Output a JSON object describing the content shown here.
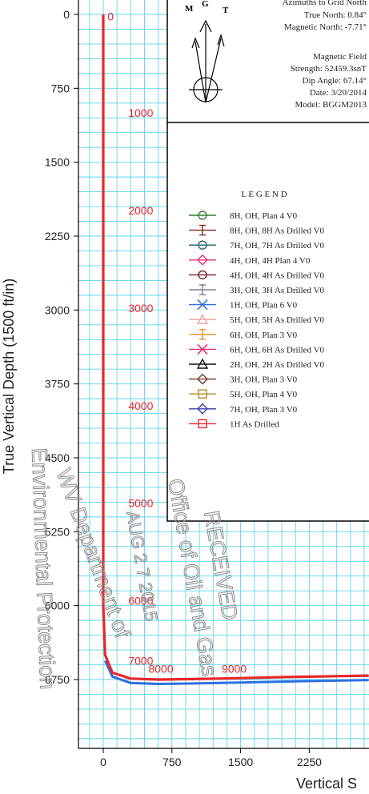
{
  "chart_data": {
    "type": "line",
    "title": "",
    "ylabel": "True Vertical Depth (1500 ft/in)",
    "xlabel": "Vertical S",
    "x_ticks": [
      0,
      750,
      1500,
      2250
    ],
    "y_ticks": [
      0,
      750,
      1500,
      2250,
      3000,
      3750,
      4500,
      5250,
      6000,
      6750
    ],
    "xlim": [
      -250,
      2850
    ],
    "ylim": [
      0,
      7450
    ],
    "grid": true,
    "md_labels": [
      {
        "text": "0",
        "x": 80,
        "y": 20
      },
      {
        "text": "1000",
        "x": 410,
        "y": 1000
      },
      {
        "text": "2000",
        "x": 410,
        "y": 1990
      },
      {
        "text": "3000",
        "x": 410,
        "y": 2980
      },
      {
        "text": "4000",
        "x": 410,
        "y": 3970
      },
      {
        "text": "5000",
        "x": 410,
        "y": 4960
      },
      {
        "text": "6000",
        "x": 410,
        "y": 5950
      },
      {
        "text": "7000",
        "x": 410,
        "y": 6560
      },
      {
        "text": "8000",
        "x": 630,
        "y": 6640
      },
      {
        "text": "9000",
        "x": 1430,
        "y": 6640
      }
    ],
    "series": [
      {
        "name": "1H As Drilled",
        "color": "#e8262a",
        "x": [
          0,
          0,
          0,
          0,
          0,
          0,
          20,
          100,
          300,
          600,
          1000,
          1500,
          2000,
          2600,
          2900
        ],
        "y": [
          0,
          1000,
          2000,
          3000,
          4000,
          6000,
          6500,
          6680,
          6740,
          6750,
          6745,
          6735,
          6725,
          6715,
          6710
        ]
      },
      {
        "name": "1H, OH, Plan 6 V0",
        "color": "#2f6fe0",
        "x": [
          20,
          100,
          300,
          600,
          1000,
          1500,
          2000,
          2600,
          2900
        ],
        "y": [
          6560,
          6720,
          6785,
          6795,
          6790,
          6780,
          6770,
          6760,
          6755
        ]
      }
    ]
  },
  "north_box": {
    "header": "Azimuths to Grid North",
    "true_north": "True North: 0.84°",
    "magnetic_north": "Magnetic North: -7.71°",
    "field_title": "Magnetic Field",
    "strength": "Strength: 52459.3snT",
    "dip": "Dip Angle: 67.14°",
    "date": "Date: 3/20/2014",
    "model": "Model: BGGM2013",
    "letters": {
      "m": "M",
      "g": "G",
      "t": "T"
    }
  },
  "legend": {
    "title": "L E G E N D",
    "items": [
      {
        "label": "8H, OH, Plan 4 V0",
        "color": "#2e7d32",
        "marker": "circle"
      },
      {
        "label": "8H, OH, 8H As Drilled V0",
        "color": "#7a2a1a",
        "marker": "tick"
      },
      {
        "label": "7H, OH, 7H As Drilled V0",
        "color": "#1f5f6f",
        "marker": "circle"
      },
      {
        "label": "4H, OH, 4H Plan 4 V0",
        "color": "#e0307a",
        "marker": "diamond"
      },
      {
        "label": "4H, OH, 4H As Drilled V0",
        "color": "#7a1a2a",
        "marker": "circle"
      },
      {
        "label": "3H, OH, 3H As Drilled V0",
        "color": "#8a7a9a",
        "marker": "tick"
      },
      {
        "label": "1H, OH, Plan 6 V0",
        "color": "#2f6fe0",
        "marker": "x"
      },
      {
        "label": "5H, OH, 5H As Drilled V0",
        "color": "#f4a0a0",
        "marker": "triangle"
      },
      {
        "label": "6H, OH, Plan 3 V0",
        "color": "#f08a20",
        "marker": "tick"
      },
      {
        "label": "6H, OH, 6H As Drilled V0",
        "color": "#e8306a",
        "marker": "x"
      },
      {
        "label": "2H, OH, 2H As Drilled V0",
        "color": "#111111",
        "marker": "triangle"
      },
      {
        "label": "3H, OH, Plan 3 V0",
        "color": "#7a3a2a",
        "marker": "diamond"
      },
      {
        "label": "5H, OH, Plan 4 V0",
        "color": "#b08a20",
        "marker": "square"
      },
      {
        "label": "7H, OH, Plan 3 V0",
        "color": "#3a3ab0",
        "marker": "diamond"
      },
      {
        "label": "1H As Drilled",
        "color": "#e8262a",
        "marker": "square"
      }
    ]
  },
  "stamps": {
    "office": "Office of Oil and Gas",
    "received": "RECEIVED",
    "date": "AUG 2 7 2015",
    "dept": "WV Department of",
    "env": "Environmental Protection"
  }
}
